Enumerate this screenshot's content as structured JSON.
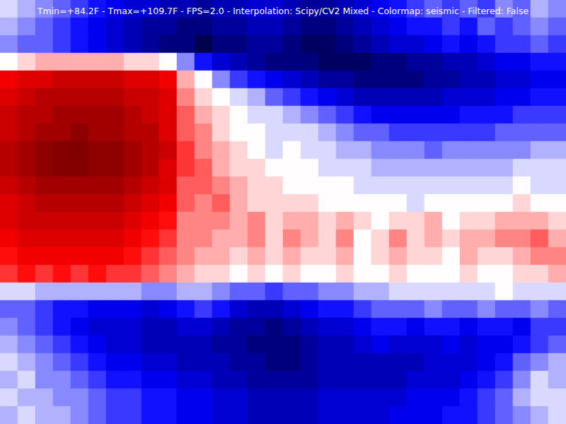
{
  "chart_data": {
    "type": "heatmap",
    "title": "Tmin=+84.2F - Tmax=+109.7F - FPS=2.0 - Interpolation: Scipy/CV2 Mixed - Colormap: seismic - Filtered: False",
    "zlim": [
      84.2,
      109.7
    ],
    "tick_labels": false,
    "grid": false,
    "cells": [
      [
        96,
        95,
        94,
        93,
        92,
        91,
        90,
        89,
        89,
        88,
        88,
        87,
        88,
        88,
        89,
        89,
        88,
        87,
        87,
        88,
        89,
        90,
        91,
        92,
        93,
        92,
        93,
        92,
        94,
        93,
        95,
        94
      ],
      [
        95,
        94,
        93,
        92,
        91,
        90,
        89,
        88,
        87,
        87,
        86,
        86,
        87,
        87,
        88,
        88,
        87,
        86,
        86,
        87,
        88,
        89,
        90,
        91,
        91,
        92,
        91,
        93,
        92,
        93,
        94,
        93
      ],
      [
        94,
        93,
        93,
        92,
        91,
        90,
        89,
        88,
        87,
        86,
        86,
        84.2,
        86,
        86,
        87,
        87,
        86,
        85,
        85,
        86,
        87,
        88,
        89,
        89,
        90,
        91,
        90,
        91,
        92,
        92,
        93,
        92
      ],
      [
        97,
        98,
        99,
        99,
        99,
        99,
        99,
        98,
        98,
        97,
        94,
        91,
        89,
        88,
        87,
        86,
        86,
        86,
        85,
        85,
        85,
        86,
        86,
        87,
        87,
        88,
        88,
        89,
        90,
        90,
        91,
        91
      ],
      [
        104,
        105,
        105,
        106,
        106,
        106,
        106,
        105,
        105,
        104,
        99,
        97,
        94,
        92,
        91,
        90,
        89,
        88,
        87,
        87,
        86,
        86,
        86,
        86,
        87,
        87,
        88,
        88,
        89,
        89,
        90,
        90
      ],
      [
        105,
        106,
        107,
        107,
        107,
        107,
        107,
        106,
        106,
        105,
        100,
        98,
        97,
        96,
        95,
        93,
        92,
        91,
        90,
        89,
        88,
        88,
        88,
        88,
        88,
        89,
        89,
        89,
        90,
        90,
        91,
        91
      ],
      [
        106,
        107,
        107,
        108,
        108,
        108,
        108,
        107,
        106,
        105,
        101,
        99,
        98,
        97,
        96,
        96,
        95,
        94,
        93,
        92,
        91,
        90,
        90,
        90,
        90,
        90,
        91,
        91,
        91,
        92,
        92,
        92
      ],
      [
        106,
        107,
        108,
        108,
        109,
        108,
        108,
        107,
        107,
        105,
        101,
        100,
        98,
        97,
        97,
        96,
        96,
        96,
        95,
        94,
        93,
        93,
        92,
        92,
        92,
        92,
        92,
        92,
        93,
        93,
        93,
        93
      ],
      [
        107,
        108,
        109,
        109.5,
        109.7,
        109,
        109,
        108,
        107,
        106,
        102,
        100,
        99,
        98,
        97,
        96,
        97,
        96,
        96,
        95,
        95,
        94,
        94,
        94,
        93,
        94,
        94,
        94,
        94,
        94,
        95,
        95
      ],
      [
        107,
        108,
        109,
        109.5,
        109.5,
        109,
        109,
        108,
        107,
        105,
        102,
        101,
        99,
        98,
        98,
        97,
        97,
        97,
        96,
        96,
        96,
        95,
        95,
        95,
        95,
        95,
        95,
        95,
        95,
        96,
        96,
        96
      ],
      [
        106,
        107,
        108,
        108,
        108,
        108,
        108,
        107,
        106,
        105,
        101,
        101,
        100,
        99,
        98,
        98,
        97,
        97,
        97,
        97,
        96,
        96,
        96,
        96,
        96,
        96,
        96,
        96,
        96,
        97,
        96,
        96
      ],
      [
        105,
        106,
        107,
        107,
        107,
        107,
        107,
        106,
        105,
        104,
        101,
        100,
        101,
        99,
        98,
        98,
        98,
        98,
        97,
        97,
        97,
        97,
        97,
        96,
        97,
        97,
        97,
        97,
        97,
        98,
        97,
        97
      ],
      [
        105,
        106,
        106,
        106,
        106,
        106,
        106,
        105,
        104,
        103,
        100,
        100,
        100,
        99,
        100,
        98,
        99,
        99,
        98,
        99,
        98,
        97,
        98,
        98,
        99,
        97,
        98,
        98,
        99,
        99,
        99,
        98
      ],
      [
        104,
        105,
        105,
        105,
        105,
        105,
        105,
        104,
        103,
        102,
        100,
        100,
        99,
        99,
        100,
        98,
        100,
        99,
        98,
        100,
        97,
        98,
        100,
        98,
        99,
        98,
        99,
        99,
        100,
        100,
        101,
        99
      ],
      [
        103,
        104,
        104,
        104,
        104,
        104,
        104,
        103,
        102,
        101,
        100,
        99,
        99,
        98,
        99,
        98,
        99,
        98,
        98,
        99,
        97,
        98,
        99,
        98,
        98,
        97,
        99,
        98,
        98,
        99,
        100,
        100
      ],
      [
        102,
        103,
        102,
        103,
        102,
        103,
        102,
        102,
        101,
        100,
        99,
        98,
        98,
        97,
        98,
        97,
        98,
        97,
        97,
        98,
        97,
        97,
        98,
        97,
        97,
        97,
        98,
        97,
        97,
        98,
        98,
        99
      ],
      [
        96,
        96,
        95,
        95,
        95,
        95,
        95,
        95,
        94,
        94,
        95,
        95,
        94,
        93,
        93,
        92,
        93,
        93,
        94,
        94,
        95,
        95,
        96,
        96,
        96,
        96,
        96,
        96,
        97,
        96,
        96,
        96
      ],
      [
        93,
        93,
        92,
        91,
        91,
        90,
        90,
        90,
        89,
        90,
        91,
        92,
        91,
        89,
        88,
        88,
        89,
        90,
        91,
        91,
        92,
        93,
        93,
        93,
        94,
        93,
        93,
        94,
        93,
        93,
        94,
        93
      ],
      [
        94,
        93,
        92,
        91,
        90,
        89,
        89,
        89,
        88,
        88,
        89,
        89,
        88,
        87,
        87,
        86,
        87,
        88,
        89,
        89,
        90,
        91,
        91,
        90,
        91,
        91,
        90,
        91,
        91,
        90,
        92,
        92
      ],
      [
        95,
        94,
        93,
        92,
        91,
        90,
        89,
        89,
        88,
        88,
        88,
        88,
        87,
        87,
        86,
        86,
        86,
        87,
        88,
        88,
        89,
        90,
        89,
        89,
        89,
        90,
        89,
        90,
        90,
        91,
        92,
        93
      ],
      [
        96,
        95,
        94,
        93,
        92,
        91,
        90,
        90,
        89,
        89,
        88,
        88,
        88,
        87,
        87,
        86,
        86,
        87,
        88,
        88,
        88,
        88,
        88,
        88,
        89,
        89,
        89,
        90,
        91,
        93,
        94,
        95
      ],
      [
        95,
        96,
        94,
        94,
        93,
        92,
        91,
        91,
        90,
        90,
        89,
        89,
        88,
        88,
        87,
        87,
        87,
        87,
        88,
        88,
        88,
        88,
        88,
        89,
        89,
        89,
        90,
        91,
        92,
        94,
        96,
        95
      ],
      [
        96,
        95,
        95,
        94,
        94,
        93,
        92,
        92,
        91,
        91,
        90,
        90,
        89,
        89,
        88,
        88,
        88,
        88,
        89,
        89,
        89,
        89,
        89,
        90,
        90,
        90,
        91,
        92,
        93,
        95,
        96,
        96
      ],
      [
        95,
        96,
        95,
        95,
        94,
        93,
        92,
        92,
        91,
        91,
        90,
        90,
        89,
        89,
        88,
        88,
        88,
        88,
        89,
        89,
        89,
        89,
        90,
        90,
        90,
        91,
        91,
        92,
        93,
        94,
        95,
        96
      ]
    ]
  }
}
